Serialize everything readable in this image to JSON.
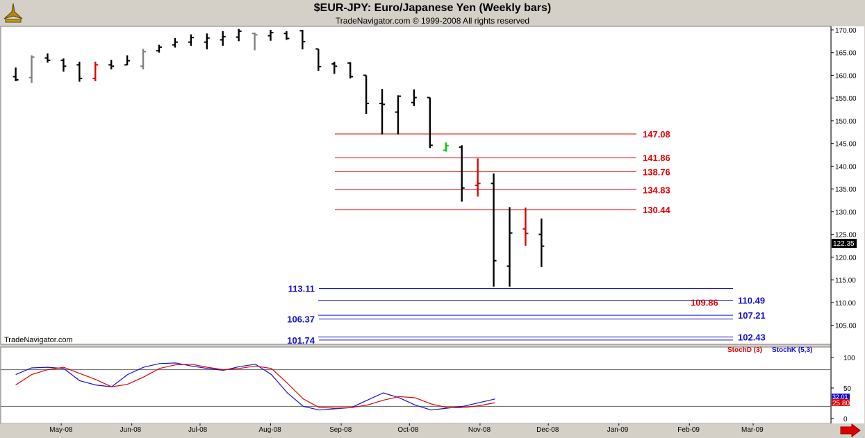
{
  "header": {
    "title": "$EUR-JPY:  Euro/Japanese Yen  (Weekly bars)",
    "subtitle": "TradeNavigator.com © 1999-2008 All rights reserved"
  },
  "watermark": "TradeNavigator.com",
  "last_price_tag": "122.35",
  "osc_value_tag_blue": "32.01",
  "osc_value_tag_red": "25.80",
  "stoch_d_label": "StochD (3)",
  "stoch_k_label": "StochK (5,3)",
  "colors": {
    "up": "#000000",
    "gray": "#808080",
    "red": "#e00000",
    "green": "#00cc00",
    "levelRed": "#e00000",
    "levelBlue": "#1010d0",
    "stochK": "#1010d0",
    "stochD": "#e00000"
  },
  "chart_data": [
    {
      "type": "ohlc",
      "title": "$EUR-JPY:  Euro/Japanese Yen  (Weekly bars)",
      "ylim": [
        102,
        171
      ],
      "yticks": [
        "170.00",
        "165.00",
        "160.00",
        "155.00",
        "150.00",
        "145.00",
        "140.00",
        "135.00",
        "130.00",
        "125.00",
        "120.00",
        "115.00",
        "110.00",
        "105.00"
      ],
      "xticks": [
        "May-08",
        "Jun-08",
        "Jul-08",
        "Aug-08",
        "Sep-08",
        "Oct-08",
        "Nov-08",
        "Dec-08",
        "Jan-09",
        "Feb-09",
        "Mar-09"
      ],
      "bars": [
        {
          "date": "2008-04-11",
          "o": 159.7,
          "h": 161.7,
          "l": 158.7,
          "c": 159.0,
          "color": "up"
        },
        {
          "date": "2008-04-18",
          "o": 159.5,
          "h": 164.4,
          "l": 158.3,
          "c": 164.0,
          "color": "gray"
        },
        {
          "date": "2008-04-25",
          "o": 163.8,
          "h": 164.8,
          "l": 162.8,
          "c": 163.3,
          "color": "up"
        },
        {
          "date": "2008-05-02",
          "o": 163.3,
          "h": 163.7,
          "l": 160.8,
          "c": 162.0,
          "color": "up"
        },
        {
          "date": "2008-05-09",
          "o": 162.3,
          "h": 163.0,
          "l": 158.6,
          "c": 159.3,
          "color": "up"
        },
        {
          "date": "2008-05-16",
          "o": 159.3,
          "h": 163.0,
          "l": 158.7,
          "c": 162.3,
          "color": "red"
        },
        {
          "date": "2008-05-23",
          "o": 162.3,
          "h": 163.4,
          "l": 161.3,
          "c": 162.0,
          "color": "up"
        },
        {
          "date": "2008-05-30",
          "o": 162.3,
          "h": 164.4,
          "l": 162.2,
          "c": 163.2,
          "color": "up"
        },
        {
          "date": "2008-06-06",
          "o": 162.0,
          "h": 165.8,
          "l": 161.3,
          "c": 165.2,
          "color": "gray"
        },
        {
          "date": "2008-06-13",
          "o": 165.4,
          "h": 166.7,
          "l": 165.0,
          "c": 166.2,
          "color": "up"
        },
        {
          "date": "2008-06-20",
          "o": 166.7,
          "h": 168.2,
          "l": 166.1,
          "c": 167.3,
          "color": "up"
        },
        {
          "date": "2008-06-27",
          "o": 167.3,
          "h": 169.0,
          "l": 166.5,
          "c": 168.3,
          "color": "up"
        },
        {
          "date": "2008-07-04",
          "o": 167.3,
          "h": 169.2,
          "l": 165.7,
          "c": 168.2,
          "color": "up"
        },
        {
          "date": "2008-07-11",
          "o": 167.8,
          "h": 169.7,
          "l": 166.5,
          "c": 168.5,
          "color": "up"
        },
        {
          "date": "2008-07-18",
          "o": 168.4,
          "h": 170.2,
          "l": 167.5,
          "c": 169.7,
          "color": "up"
        },
        {
          "date": "2008-07-25",
          "o": 169.2,
          "h": 169.4,
          "l": 165.5,
          "c": 168.9,
          "color": "gray"
        },
        {
          "date": "2008-08-01",
          "o": 168.7,
          "h": 170.0,
          "l": 167.6,
          "c": 169.4,
          "color": "up"
        },
        {
          "date": "2008-08-08",
          "o": 169.2,
          "h": 169.7,
          "l": 167.8,
          "c": 168.1,
          "color": "up"
        },
        {
          "date": "2008-08-15",
          "o": 169.8,
          "h": 170.0,
          "l": 165.7,
          "c": 167.4,
          "color": "up"
        },
        {
          "date": "2008-08-22",
          "o": 165.8,
          "h": 165.8,
          "l": 161.0,
          "c": 161.9,
          "color": "up"
        },
        {
          "date": "2008-08-29",
          "o": 162.5,
          "h": 163.0,
          "l": 160.3,
          "c": 162.0,
          "color": "up"
        },
        {
          "date": "2008-09-05",
          "o": 162.7,
          "h": 162.9,
          "l": 159.3,
          "c": 159.7,
          "color": "up"
        },
        {
          "date": "2008-09-12",
          "o": 160.0,
          "h": 160.0,
          "l": 151.5,
          "c": 153.8,
          "color": "up"
        },
        {
          "date": "2008-09-19",
          "o": 153.8,
          "h": 157.0,
          "l": 147.0,
          "c": 153.6,
          "color": "up"
        },
        {
          "date": "2008-09-26",
          "o": 151.9,
          "h": 155.6,
          "l": 147.0,
          "c": 155.4,
          "color": "up"
        },
        {
          "date": "2008-10-03",
          "o": 154.0,
          "h": 156.9,
          "l": 153.2,
          "c": 155.1,
          "color": "up"
        },
        {
          "date": "2008-10-10",
          "o": 155.1,
          "h": 155.1,
          "l": 144.0,
          "c": 144.6,
          "color": "up"
        },
        {
          "date": "2008-10-17",
          "o": 143.5,
          "h": 145.2,
          "l": 143.2,
          "c": 144.5,
          "color": "green"
        },
        {
          "date": "2008-10-24",
          "o": 144.2,
          "h": 144.6,
          "l": 132.2,
          "c": 135.2,
          "color": "up"
        },
        {
          "date": "2008-10-31",
          "o": 135.8,
          "h": 141.7,
          "l": 133.3,
          "c": 136.2,
          "color": "red"
        },
        {
          "date": "2008-11-07",
          "o": 136.2,
          "h": 138.4,
          "l": 113.5,
          "c": 119.2,
          "color": "up"
        },
        {
          "date": "2008-11-14",
          "o": 118.0,
          "h": 131.0,
          "l": 113.5,
          "c": 125.3,
          "color": "up"
        },
        {
          "date": "2008-11-21",
          "o": 126.2,
          "h": 130.9,
          "l": 122.5,
          "c": 125.2,
          "color": "red"
        },
        {
          "date": "2008-11-28",
          "o": 125.0,
          "h": 128.5,
          "l": 117.8,
          "c": 122.4,
          "color": "up"
        }
      ],
      "levels": [
        {
          "label": "147.08",
          "value": 147.08,
          "color": "red",
          "side": "right"
        },
        {
          "label": "141.86",
          "value": 141.86,
          "color": "red",
          "side": "right"
        },
        {
          "label": "138.76",
          "value": 138.76,
          "color": "red",
          "side": "right"
        },
        {
          "label": "134.83",
          "value": 134.83,
          "color": "red",
          "side": "right"
        },
        {
          "label": "130.44",
          "value": 130.44,
          "color": "red",
          "side": "right"
        },
        {
          "label": "113.11",
          "value": 113.11,
          "color": "blue",
          "side": "left"
        },
        {
          "label": "110.49",
          "value": 110.49,
          "color": "blue",
          "side": "right"
        },
        {
          "label": "109.86",
          "value": 109.86,
          "color": "red",
          "side": "inner"
        },
        {
          "label": "107.21",
          "value": 107.21,
          "color": "blue",
          "side": "right"
        },
        {
          "label": "106.37",
          "value": 106.37,
          "color": "blue",
          "side": "left"
        },
        {
          "label": "102.43",
          "value": 102.43,
          "color": "blue",
          "side": "right"
        },
        {
          "label": "101.74",
          "value": 101.74,
          "color": "blue",
          "side": "left"
        }
      ]
    },
    {
      "type": "line",
      "ylim": [
        0,
        100
      ],
      "yticks": [
        "100",
        "50",
        "0"
      ],
      "reference_lines": [
        80,
        20
      ],
      "series": [
        {
          "name": "StochK (5,3)",
          "values": [
            72,
            83,
            84,
            82,
            62,
            55,
            52,
            72,
            84,
            90,
            91,
            86,
            82,
            79,
            85,
            89,
            72,
            42,
            20,
            14,
            16,
            18,
            30,
            42,
            34,
            22,
            14,
            17,
            20,
            26,
            32
          ]
        },
        {
          "name": "StochD (3)",
          "values": [
            55,
            72,
            80,
            84,
            74,
            64,
            52,
            56,
            68,
            82,
            88,
            89,
            84,
            80,
            82,
            86,
            82,
            58,
            32,
            18,
            17,
            18,
            22,
            30,
            36,
            34,
            24,
            18,
            18,
            21,
            26
          ]
        }
      ]
    }
  ]
}
